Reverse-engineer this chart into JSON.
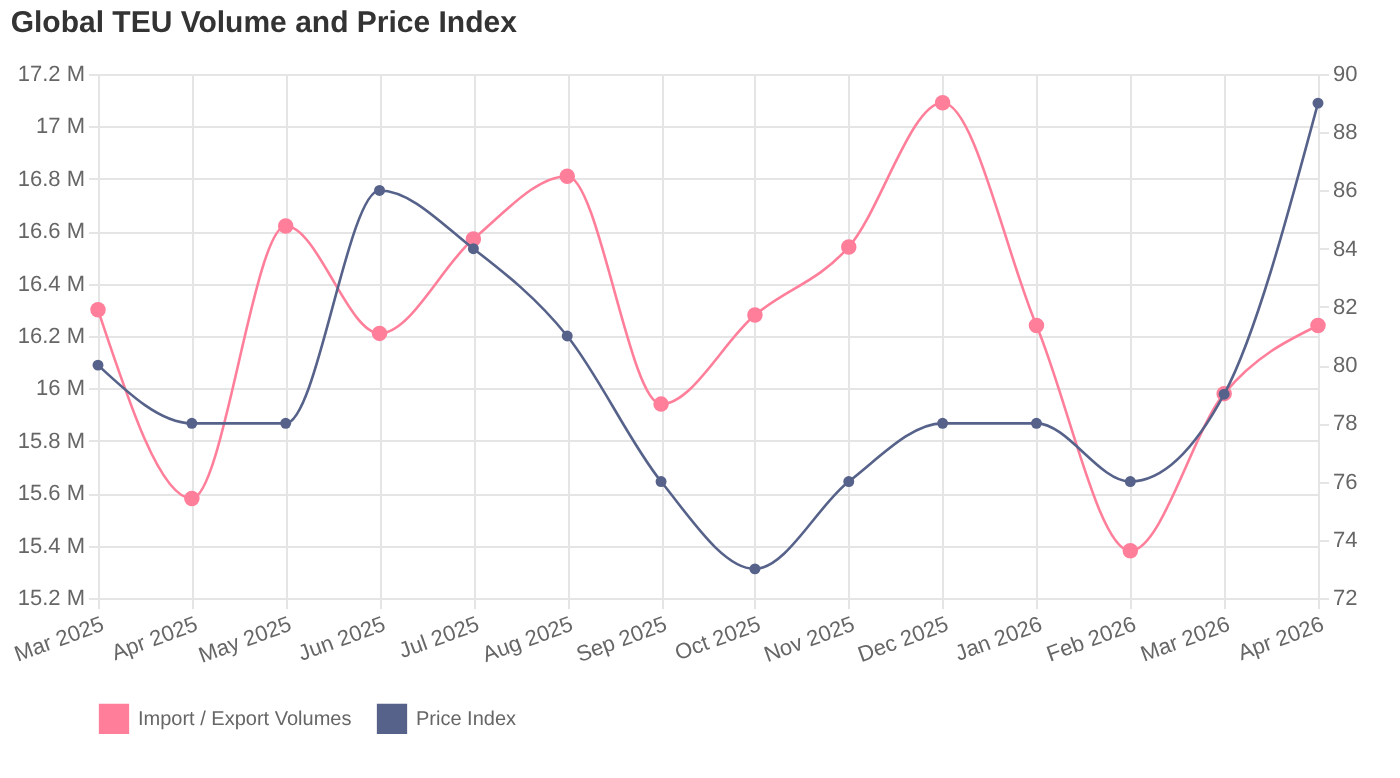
{
  "chart_data": {
    "type": "line",
    "title": "Global TEU Volume and Price Index",
    "categories": [
      "Mar 2025",
      "Apr 2025",
      "May 2025",
      "Jun 2025",
      "Jul 2025",
      "Aug 2025",
      "Sep 2025",
      "Oct 2025",
      "Nov 2025",
      "Dec 2025",
      "Jan 2026",
      "Feb 2026",
      "Mar 2026",
      "Apr 2026"
    ],
    "series": [
      {
        "name": "Import / Export Volumes",
        "color": "#ff7f9b",
        "values": [
          16300000,
          15580000,
          16620000,
          16210000,
          16570000,
          16810000,
          15940000,
          16280000,
          16540000,
          17090000,
          16240000,
          15380000,
          15980000,
          16240000
        ]
      },
      {
        "name": "Price Index",
        "color": "#56628a",
        "axis": "y2",
        "values": [
          80,
          78,
          78,
          86,
          84,
          81,
          76,
          73,
          76,
          78,
          78,
          76,
          79,
          89
        ]
      }
    ],
    "ylim": [
      15200000,
      17200000
    ],
    "yticks": [
      {
        "value": 15200000,
        "label": "15.2 M"
      },
      {
        "value": 15400000,
        "label": "15.4 M"
      },
      {
        "value": 15600000,
        "label": "15.6 M"
      },
      {
        "value": 15800000,
        "label": "15.8 M"
      },
      {
        "value": 16000000,
        "label": "16 M"
      },
      {
        "value": 16200000,
        "label": "16.2 M"
      },
      {
        "value": 16400000,
        "label": "16.4 M"
      },
      {
        "value": 16600000,
        "label": "16.6 M"
      },
      {
        "value": 16800000,
        "label": "16.8 M"
      },
      {
        "value": 17000000,
        "label": "17 M"
      },
      {
        "value": 17200000,
        "label": "17.2 M"
      }
    ],
    "y2lim": [
      72,
      90
    ],
    "y2ticks": [
      72,
      74,
      76,
      78,
      80,
      82,
      84,
      86,
      88,
      90
    ],
    "grid": true,
    "legend": "bottom",
    "marker": "circle",
    "line_style": "solid"
  }
}
